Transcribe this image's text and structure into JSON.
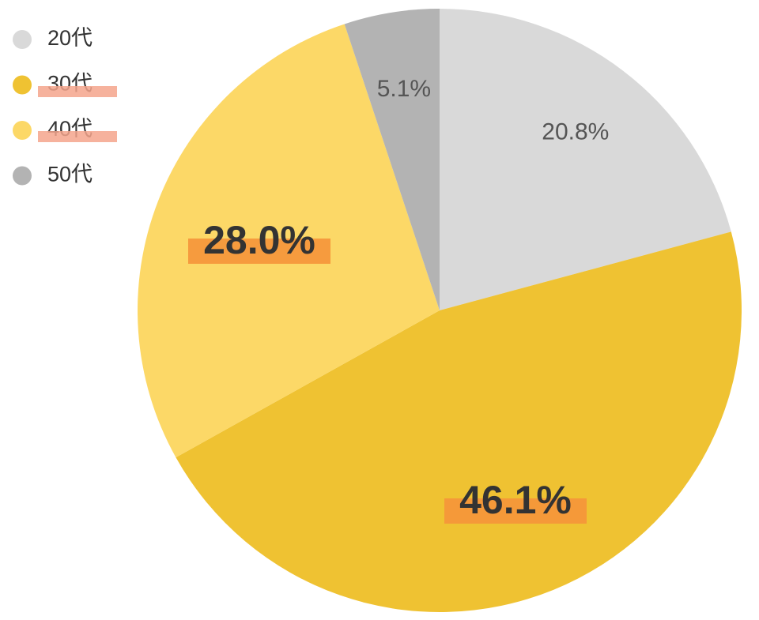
{
  "chart_data": {
    "type": "pie",
    "categories": [
      "20代",
      "30代",
      "40代",
      "50代"
    ],
    "values": [
      20.8,
      46.1,
      28.0,
      5.1
    ],
    "value_labels": [
      "20.8%",
      "46.1%",
      "28.0%",
      "5.1%"
    ],
    "colors": [
      "#d9d9d9",
      "#efc232",
      "#fcd867",
      "#b3b3b3"
    ],
    "legend": "top-left"
  }
}
